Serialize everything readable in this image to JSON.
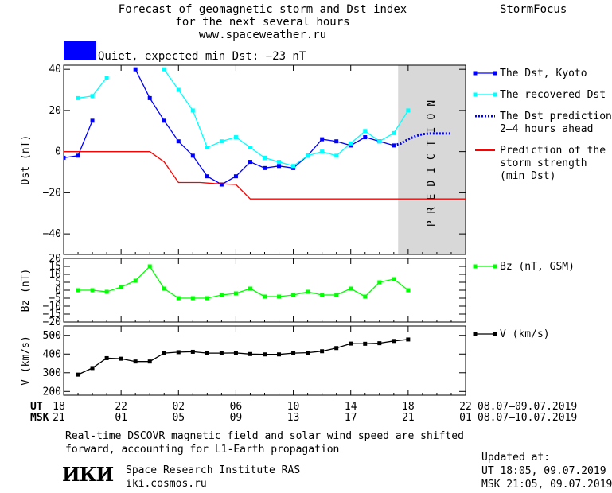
{
  "header": {
    "title_line1": "Forecast of geomagnetic storm and Dst index",
    "title_line2": "for the next several hours",
    "title_line3": "www.spaceweather.ru",
    "brand": "StormFocus",
    "quiet_text": "Quiet, expected min Dst: −23 nT",
    "quiet_color": "#0000ff"
  },
  "x_axis": {
    "ut_label": "UT",
    "msk_label": "MSK",
    "ut_ticks": [
      "18",
      "22",
      "02",
      "06",
      "10",
      "14",
      "18",
      "22"
    ],
    "msk_ticks": [
      "21",
      "01",
      "05",
      "09",
      "13",
      "17",
      "21",
      "01"
    ],
    "ut_range": "08.07–09.07.2019",
    "msk_range": "08.07–10.07.2019"
  },
  "footer": {
    "note_line1": "Real-time DSCOVR magnetic field and solar wind speed are shifted",
    "note_line2": "forward, accounting for L1-Earth propagation",
    "logo": "ИКИ",
    "institute": "Space Research Institute RAS",
    "site": "iki.cosmos.ru",
    "updated_label": "Updated at:",
    "updated_ut": "UT   18:05, 09.07.2019",
    "updated_msk": "MSK 21:05, 09.07.2019"
  },
  "chart_data": [
    {
      "type": "line",
      "ylabel": "Dst (nT)",
      "ylim": [
        -50,
        42
      ],
      "yticks": [
        40,
        20,
        0,
        -20,
        -40
      ],
      "xlim": [
        0,
        28
      ],
      "prediction_label": "PREDICTION",
      "prediction_band": [
        23.3,
        28
      ],
      "series": [
        {
          "name": "The Dst, Kyoto",
          "color": "#0000ff",
          "marker": "square",
          "x": [
            0,
            1,
            2,
            3,
            4,
            5,
            6,
            7,
            8,
            9,
            10,
            11,
            12,
            13,
            14,
            15,
            16,
            17,
            18,
            19,
            20,
            21,
            22,
            23
          ],
          "y": [
            -3,
            -2,
            15,
            null,
            null,
            40,
            26,
            15,
            5,
            -2,
            -12,
            -16,
            -12,
            -5,
            -8,
            -7,
            -8,
            -2,
            6,
            5,
            3,
            7,
            5,
            3
          ]
        },
        {
          "name": "The recovered Dst",
          "color": "#00ffff",
          "marker": "square",
          "x": [
            1,
            2,
            3,
            4,
            5,
            6,
            7,
            8,
            9,
            10,
            11,
            12,
            13,
            14,
            15,
            16,
            17,
            18,
            19,
            20,
            21,
            22,
            23,
            24
          ],
          "y": [
            26,
            27,
            36,
            null,
            null,
            null,
            40,
            30,
            20,
            2,
            5,
            7,
            2,
            -3,
            -5,
            -7,
            -2,
            0,
            -2,
            4,
            10,
            5,
            9,
            20
          ]
        },
        {
          "name": "The Dst prediction\n2–4 hours ahead",
          "color": "#0000ff",
          "marker": "dotted",
          "x": [
            23,
            23.5,
            24,
            24.5,
            25,
            25.5,
            26,
            27
          ],
          "y": [
            3,
            4,
            6,
            7.5,
            8.5,
            8.8,
            8.8,
            8.8
          ]
        },
        {
          "name": "Prediction of the\nstorm strength\n(min Dst)",
          "color": "#ff0000",
          "marker": "none",
          "x": [
            0,
            6,
            7,
            8,
            9.5,
            10.5,
            12,
            13,
            28
          ],
          "y": [
            0,
            0,
            -5,
            -15,
            -15,
            -15.5,
            -16,
            -23,
            -23
          ]
        }
      ]
    },
    {
      "type": "line",
      "ylabel": "Bz (nT)",
      "ylim": [
        -20,
        20
      ],
      "yticks": [
        20,
        15,
        10,
        5,
        0,
        -5,
        -10,
        -15,
        -20
      ],
      "xlim": [
        0,
        28
      ],
      "series": [
        {
          "name": "Bz (nT, GSM)",
          "color": "#00ff00",
          "marker": "square",
          "x": [
            1,
            2,
            3,
            4,
            5,
            6,
            7,
            8,
            9,
            10,
            11,
            12,
            13,
            14,
            15,
            16,
            17,
            18,
            19,
            20,
            21,
            22,
            23,
            24
          ],
          "y": [
            0,
            0,
            -1,
            2,
            6,
            15,
            1,
            -5,
            -5,
            -5,
            -3,
            -2,
            1,
            -4,
            -4,
            -3,
            -1,
            -3,
            -3,
            1,
            -4,
            5,
            7,
            0
          ]
        }
      ]
    },
    {
      "type": "line",
      "ylabel": "V (km/s)",
      "ylim": [
        180,
        550
      ],
      "yticks": [
        500,
        400,
        300,
        200
      ],
      "xlim": [
        0,
        28
      ],
      "series": [
        {
          "name": "V (km/s)",
          "color": "#000000",
          "marker": "square",
          "x": [
            1,
            2,
            3,
            4,
            5,
            6,
            7,
            8,
            9,
            10,
            11,
            12,
            13,
            14,
            15,
            16,
            17,
            18,
            19,
            20,
            21,
            22,
            23,
            24
          ],
          "y": [
            290,
            325,
            378,
            375,
            360,
            360,
            405,
            410,
            412,
            405,
            405,
            406,
            400,
            398,
            398,
            405,
            407,
            415,
            432,
            456,
            455,
            458,
            470,
            478
          ]
        }
      ]
    }
  ]
}
